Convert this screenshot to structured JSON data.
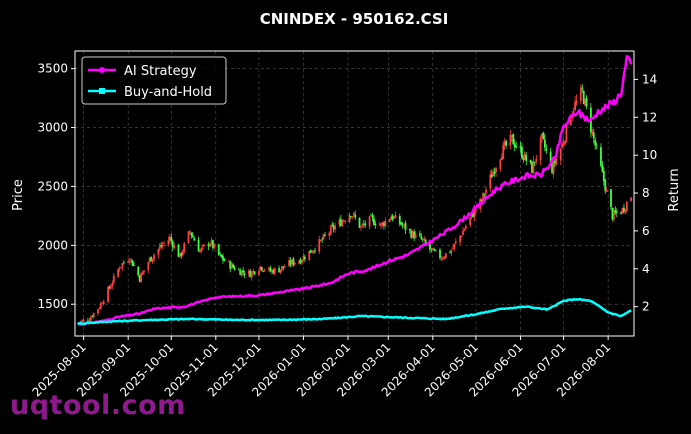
{
  "watermark": "uqtool.com",
  "chart_data": {
    "type": "line",
    "title": "CNINDEX - 950162.CSI",
    "xlabel": "",
    "ylabel": "Price",
    "y2label": "Return",
    "xlim": [
      "2025-07-26",
      "2026-08-19"
    ],
    "ylim": [
      1230,
      3650
    ],
    "y2lim": [
      0.45,
      15.5
    ],
    "grid": true,
    "legend_position": "top-left",
    "x_ticks": [
      "2025-08-01",
      "2025-09-01",
      "2025-10-01",
      "2025-11-01",
      "2025-12-01",
      "2026-01-01",
      "2026-02-01",
      "2026-03-01",
      "2026-04-01",
      "2026-05-01",
      "2026-06-01",
      "2026-07-01",
      "2026-08-01"
    ],
    "y_ticks": [
      1500,
      2000,
      2500,
      3000,
      3500
    ],
    "y2_ticks": [
      2,
      4,
      6,
      8,
      10,
      12,
      14
    ],
    "colors": {
      "up": "#ff4040",
      "down": "#40ff40",
      "ai": "#ff00ff",
      "bh": "#00ffff",
      "grid": "#555555"
    },
    "price_path": [
      [
        "2025-07-28",
        1340
      ],
      [
        "2025-08-05",
        1380
      ],
      [
        "2025-08-12",
        1480
      ],
      [
        "2025-08-19",
        1640
      ],
      [
        "2025-08-26",
        1820
      ],
      [
        "2025-09-02",
        1900
      ],
      [
        "2025-09-09",
        1720
      ],
      [
        "2025-09-16",
        1880
      ],
      [
        "2025-09-23",
        1980
      ],
      [
        "2025-09-30",
        2060
      ],
      [
        "2025-10-07",
        1900
      ],
      [
        "2025-10-14",
        2120
      ],
      [
        "2025-10-21",
        1950
      ],
      [
        "2025-10-28",
        2030
      ],
      [
        "2025-11-04",
        1900
      ],
      [
        "2025-11-11",
        1830
      ],
      [
        "2025-11-18",
        1780
      ],
      [
        "2025-11-25",
        1760
      ],
      [
        "2025-12-02",
        1820
      ],
      [
        "2025-12-09",
        1780
      ],
      [
        "2025-12-16",
        1800
      ],
      [
        "2025-12-23",
        1850
      ],
      [
        "2025-12-30",
        1880
      ],
      [
        "2026-01-06",
        1950
      ],
      [
        "2026-01-13",
        2030
      ],
      [
        "2026-01-20",
        2130
      ],
      [
        "2026-01-27",
        2200
      ],
      [
        "2026-02-03",
        2280
      ],
      [
        "2026-02-10",
        2150
      ],
      [
        "2026-02-17",
        2220
      ],
      [
        "2026-02-24",
        2170
      ],
      [
        "2026-03-03",
        2250
      ],
      [
        "2026-03-10",
        2180
      ],
      [
        "2026-03-17",
        2100
      ],
      [
        "2026-03-24",
        2050
      ],
      [
        "2026-03-31",
        1950
      ],
      [
        "2026-04-07",
        1900
      ],
      [
        "2026-04-14",
        1960
      ],
      [
        "2026-04-21",
        2100
      ],
      [
        "2026-04-28",
        2250
      ],
      [
        "2026-05-05",
        2380
      ],
      [
        "2026-05-12",
        2600
      ],
      [
        "2026-05-19",
        2800
      ],
      [
        "2026-05-26",
        2900
      ],
      [
        "2026-06-02",
        2780
      ],
      [
        "2026-06-09",
        2650
      ],
      [
        "2026-06-16",
        2900
      ],
      [
        "2026-06-23",
        2650
      ],
      [
        "2026-06-30",
        2850
      ],
      [
        "2026-07-07",
        3150
      ],
      [
        "2026-07-14",
        3300
      ],
      [
        "2026-07-21",
        2950
      ],
      [
        "2026-07-28",
        2600
      ],
      [
        "2026-08-04",
        2250
      ],
      [
        "2026-08-11",
        2300
      ],
      [
        "2026-08-17",
        2420
      ]
    ],
    "series": [
      {
        "name": "AI Strategy",
        "values": [
          [
            "2025-07-28",
            1.05
          ],
          [
            "2025-08-15",
            1.25
          ],
          [
            "2025-08-25",
            1.45
          ],
          [
            "2025-09-10",
            1.65
          ],
          [
            "2025-09-20",
            1.9
          ],
          [
            "2025-10-10",
            2.0
          ],
          [
            "2025-11-01",
            2.5
          ],
          [
            "2025-12-01",
            2.6
          ],
          [
            "2026-01-01",
            2.95
          ],
          [
            "2026-01-20",
            3.25
          ],
          [
            "2026-02-01",
            3.75
          ],
          [
            "2026-02-15",
            3.95
          ],
          [
            "2026-03-01",
            4.4
          ],
          [
            "2026-03-15",
            4.75
          ],
          [
            "2026-04-01",
            5.5
          ],
          [
            "2026-04-15",
            6.2
          ],
          [
            "2026-04-25",
            6.8
          ],
          [
            "2026-05-01",
            7.2
          ],
          [
            "2026-05-15",
            8.2
          ],
          [
            "2026-05-25",
            8.6
          ],
          [
            "2026-06-05",
            8.9
          ],
          [
            "2026-06-15",
            8.95
          ],
          [
            "2026-06-25",
            9.8
          ],
          [
            "2026-07-01",
            11.5
          ],
          [
            "2026-07-10",
            12.3
          ],
          [
            "2026-07-20",
            11.8
          ],
          [
            "2026-07-25",
            12.3
          ],
          [
            "2026-08-05",
            12.8
          ],
          [
            "2026-08-10",
            13.3
          ],
          [
            "2026-08-14",
            15.1
          ],
          [
            "2026-08-17",
            14.8
          ]
        ]
      },
      {
        "name": "Buy-and-Hold",
        "values": [
          [
            "2025-07-28",
            1.1
          ],
          [
            "2025-08-15",
            1.2
          ],
          [
            "2025-09-15",
            1.3
          ],
          [
            "2025-10-15",
            1.35
          ],
          [
            "2025-11-15",
            1.3
          ],
          [
            "2025-12-15",
            1.3
          ],
          [
            "2026-01-15",
            1.35
          ],
          [
            "2026-02-10",
            1.5
          ],
          [
            "2026-03-01",
            1.45
          ],
          [
            "2026-03-20",
            1.4
          ],
          [
            "2026-04-10",
            1.35
          ],
          [
            "2026-05-01",
            1.6
          ],
          [
            "2026-05-20",
            1.9
          ],
          [
            "2026-06-05",
            2.0
          ],
          [
            "2026-06-20",
            1.85
          ],
          [
            "2026-07-01",
            2.3
          ],
          [
            "2026-07-10",
            2.4
          ],
          [
            "2026-07-20",
            2.3
          ],
          [
            "2026-08-01",
            1.7
          ],
          [
            "2026-08-10",
            1.5
          ],
          [
            "2026-08-17",
            1.8
          ]
        ]
      }
    ]
  }
}
